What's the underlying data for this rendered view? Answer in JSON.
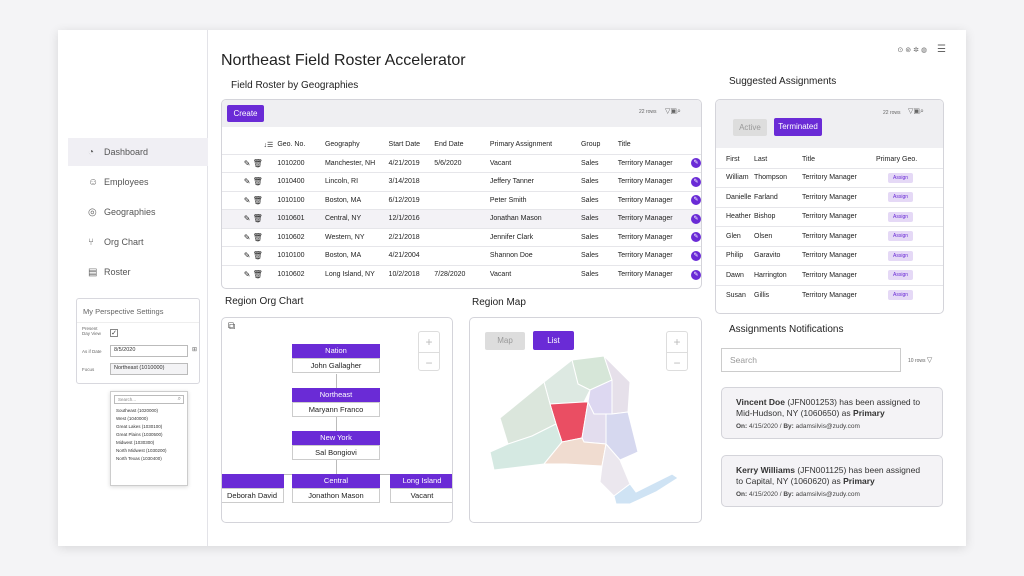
{
  "app_title": "Northeast Field Roster Accelerator",
  "sidebar": {
    "items": [
      {
        "icon": "dashboard-icon",
        "glyph": "◔",
        "label": "Dashboard"
      },
      {
        "icon": "user-icon",
        "glyph": "☺",
        "label": "Employees"
      },
      {
        "icon": "location-pin-icon",
        "glyph": "◎",
        "label": "Geographies"
      },
      {
        "icon": "org-chart-icon",
        "glyph": "⑂",
        "label": "Org Chart"
      },
      {
        "icon": "list-icon",
        "glyph": "▤",
        "label": "Roster"
      }
    ]
  },
  "perspective": {
    "title": "My Perspective Settings",
    "present_day_label": "Present Day View",
    "present_day_checked": true,
    "asof_label": "As if Date",
    "asof_value": "8/5/2020",
    "focus_label": "Focus",
    "focus_value": "Northeast (1010000)",
    "search_placeholder": "Search...",
    "options": [
      "Southeast (1020000)",
      "West (1040000)",
      "Great Lakes (1030100)",
      "Great Plains (1030500)",
      "Midwest (1030300)",
      "North Midwest (1030200)",
      "North Texas (1030400)"
    ]
  },
  "roster": {
    "title": "Field Roster by Geographies",
    "create_label": "Create",
    "rows_info": "22 rows",
    "columns": [
      "Geo. No.",
      "Geography",
      "Start Date",
      "End Date",
      "Primary Assignment",
      "Group",
      "Title"
    ],
    "rows": [
      {
        "geo": "1010200",
        "geography": "Manchester, NH",
        "start": "4/21/2019",
        "end": "5/6/2020",
        "primary": "Vacant",
        "group": "Sales",
        "title": "Territory Manager",
        "vacant": true
      },
      {
        "geo": "1010400",
        "geography": "Lincoln, RI",
        "start": "3/14/2018",
        "end": "",
        "primary": "Jeffery Tanner",
        "group": "Sales",
        "title": "Territory Manager",
        "vacant": false
      },
      {
        "geo": "1010100",
        "geography": "Boston, MA",
        "start": "6/12/2019",
        "end": "",
        "primary": "Peter Smith",
        "group": "Sales",
        "title": "Territory Manager",
        "vacant": false
      },
      {
        "geo": "1010601",
        "geography": "Central, NY",
        "start": "12/1/2016",
        "end": "",
        "primary": "Jonathan Mason",
        "group": "Sales",
        "title": "Territory Manager",
        "vacant": false
      },
      {
        "geo": "1010602",
        "geography": "Western, NY",
        "start": "2/21/2018",
        "end": "",
        "primary": "Jennifer Clark",
        "group": "Sales",
        "title": "Territory Manager",
        "vacant": false
      },
      {
        "geo": "1010100",
        "geography": "Boston, MA",
        "start": "4/21/2004",
        "end": "",
        "primary": "Shannon Doe",
        "group": "Sales",
        "title": "Territory Manager",
        "vacant": false
      },
      {
        "geo": "1010602",
        "geography": "Long Island, NY",
        "start": "10/2/2018",
        "end": "7/28/2020",
        "primary": "Vacant",
        "group": "Sales",
        "title": "Territory Manager",
        "vacant": true
      }
    ]
  },
  "suggested": {
    "title": "Suggested Assignments",
    "rows_info": "22 rows",
    "tab_active": "Active",
    "tab_terminated": "Terminated",
    "columns": [
      "First",
      "Last",
      "Title",
      "Primary Geo."
    ],
    "assign_label": "Assign",
    "rows": [
      {
        "first": "William",
        "last": "Thompson",
        "title": "Territory Manager"
      },
      {
        "first": "Danielle",
        "last": "Farland",
        "title": "Territory Manager"
      },
      {
        "first": "Heather",
        "last": "Bishop",
        "title": "Territory Manager"
      },
      {
        "first": "Glen",
        "last": "Olsen",
        "title": "Territory Manager"
      },
      {
        "first": "Philip",
        "last": "Garavito",
        "title": "Territory Manager"
      },
      {
        "first": "Dawn",
        "last": "Harrington",
        "title": "Territory Manager"
      },
      {
        "first": "Susan",
        "last": "Gillis",
        "title": "Territory Manager"
      }
    ]
  },
  "org_chart": {
    "title": "Region Org Chart",
    "nodes": {
      "nation": {
        "label": "Nation",
        "name": "John Gallagher"
      },
      "northeast": {
        "label": "Northeast",
        "name": "Maryann Franco"
      },
      "newyork": {
        "label": "New York",
        "name": "Sal Bongiovi"
      },
      "left": {
        "label": "",
        "name": "Deborah David"
      },
      "central": {
        "label": "Central",
        "name": "Jonathon Mason"
      },
      "longisland": {
        "label": "Long Island",
        "name": "Vacant"
      }
    }
  },
  "region_map": {
    "title": "Region Map",
    "map_label": "Map",
    "list_label": "List"
  },
  "notifications": {
    "title": "Assignments Notifications",
    "search_placeholder": "Search",
    "rows_info": "10 rows",
    "items": [
      {
        "name": "Vincent Doe",
        "id": " (JFN001253) has been assigned to Mid-Hudson, NY (1060650) as ",
        "role": "Primary",
        "on_label": "On:",
        "date": " 4/15/2020 / ",
        "by_label": "By:",
        "by": " adamsilvis@zudy.com"
      },
      {
        "name": "Kerry Williams",
        "id": " (JFN001125) has been assigned to Capital, NY (1060620) as ",
        "role": "Primary",
        "on_label": "On:",
        "date": " 4/15/2020 / ",
        "by_label": "By:",
        "by": " adamsilvis@zudy.com"
      }
    ]
  },
  "colors": {
    "accent": "#6a2bd6",
    "vacant": "#d9534f"
  }
}
